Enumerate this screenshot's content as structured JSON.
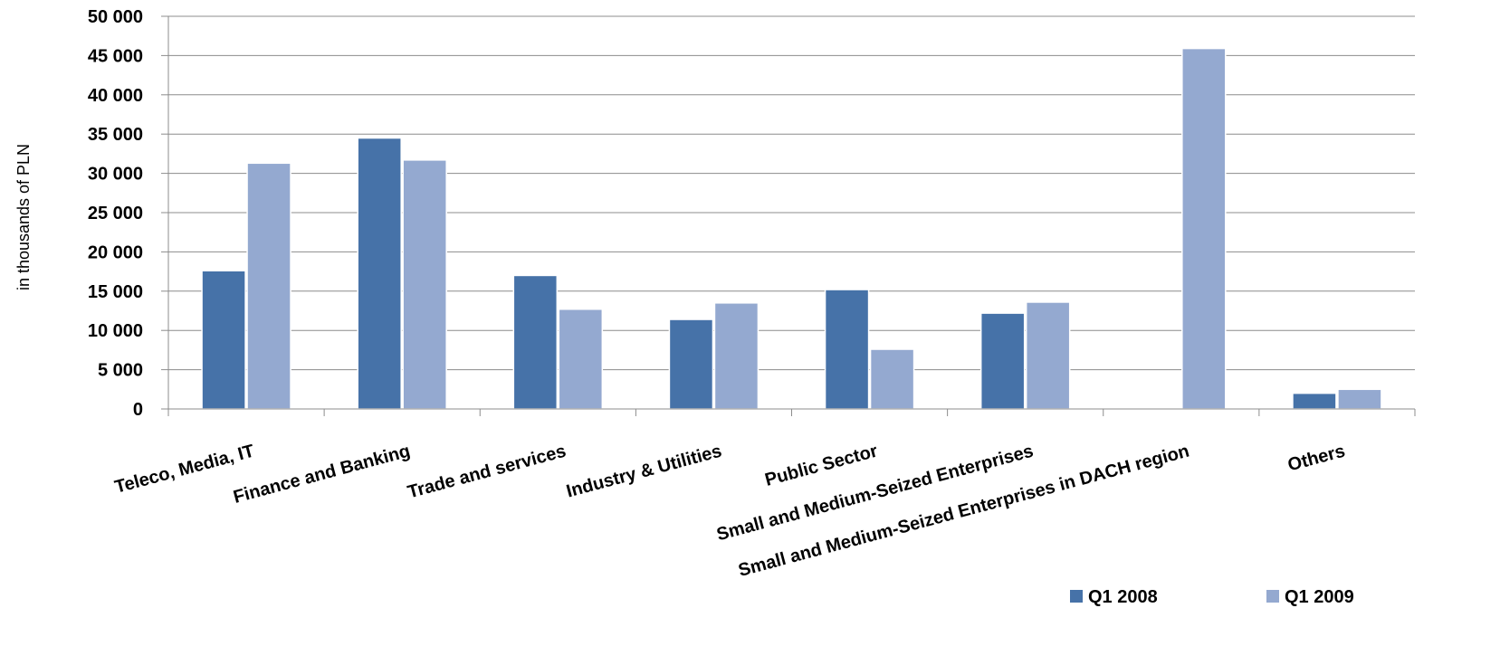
{
  "chart_data": {
    "type": "bar",
    "title": "",
    "xlabel": "",
    "ylabel": "in thousands of PLN",
    "ylim": [
      0,
      50000
    ],
    "yticks": [
      0,
      5000,
      10000,
      15000,
      20000,
      25000,
      30000,
      35000,
      40000,
      45000,
      50000
    ],
    "ytick_labels": [
      "0",
      "5 000",
      "10 000",
      "15 000",
      "20 000",
      "25 000",
      "30 000",
      "35 000",
      "40 000",
      "45 000",
      "50 000"
    ],
    "grid": true,
    "legend_position": "bottom-right",
    "categories": [
      "Teleco, Media, IT",
      "Finance and Banking",
      "Trade and services",
      "Industry & Utilities",
      "Public Sector",
      "Small and Medium-Seized Enterprises",
      "Small and Medium-Seized Enterprises in DACH region",
      "Others"
    ],
    "series": [
      {
        "name": "Q1 2008",
        "color": "#4672a8",
        "values": [
          17600,
          34500,
          17000,
          11400,
          15200,
          12200,
          0,
          2000
        ]
      },
      {
        "name": "Q1 2009",
        "color": "#94a9d0",
        "values": [
          31300,
          31700,
          12700,
          13500,
          7600,
          13600,
          45900,
          2500
        ]
      }
    ]
  }
}
